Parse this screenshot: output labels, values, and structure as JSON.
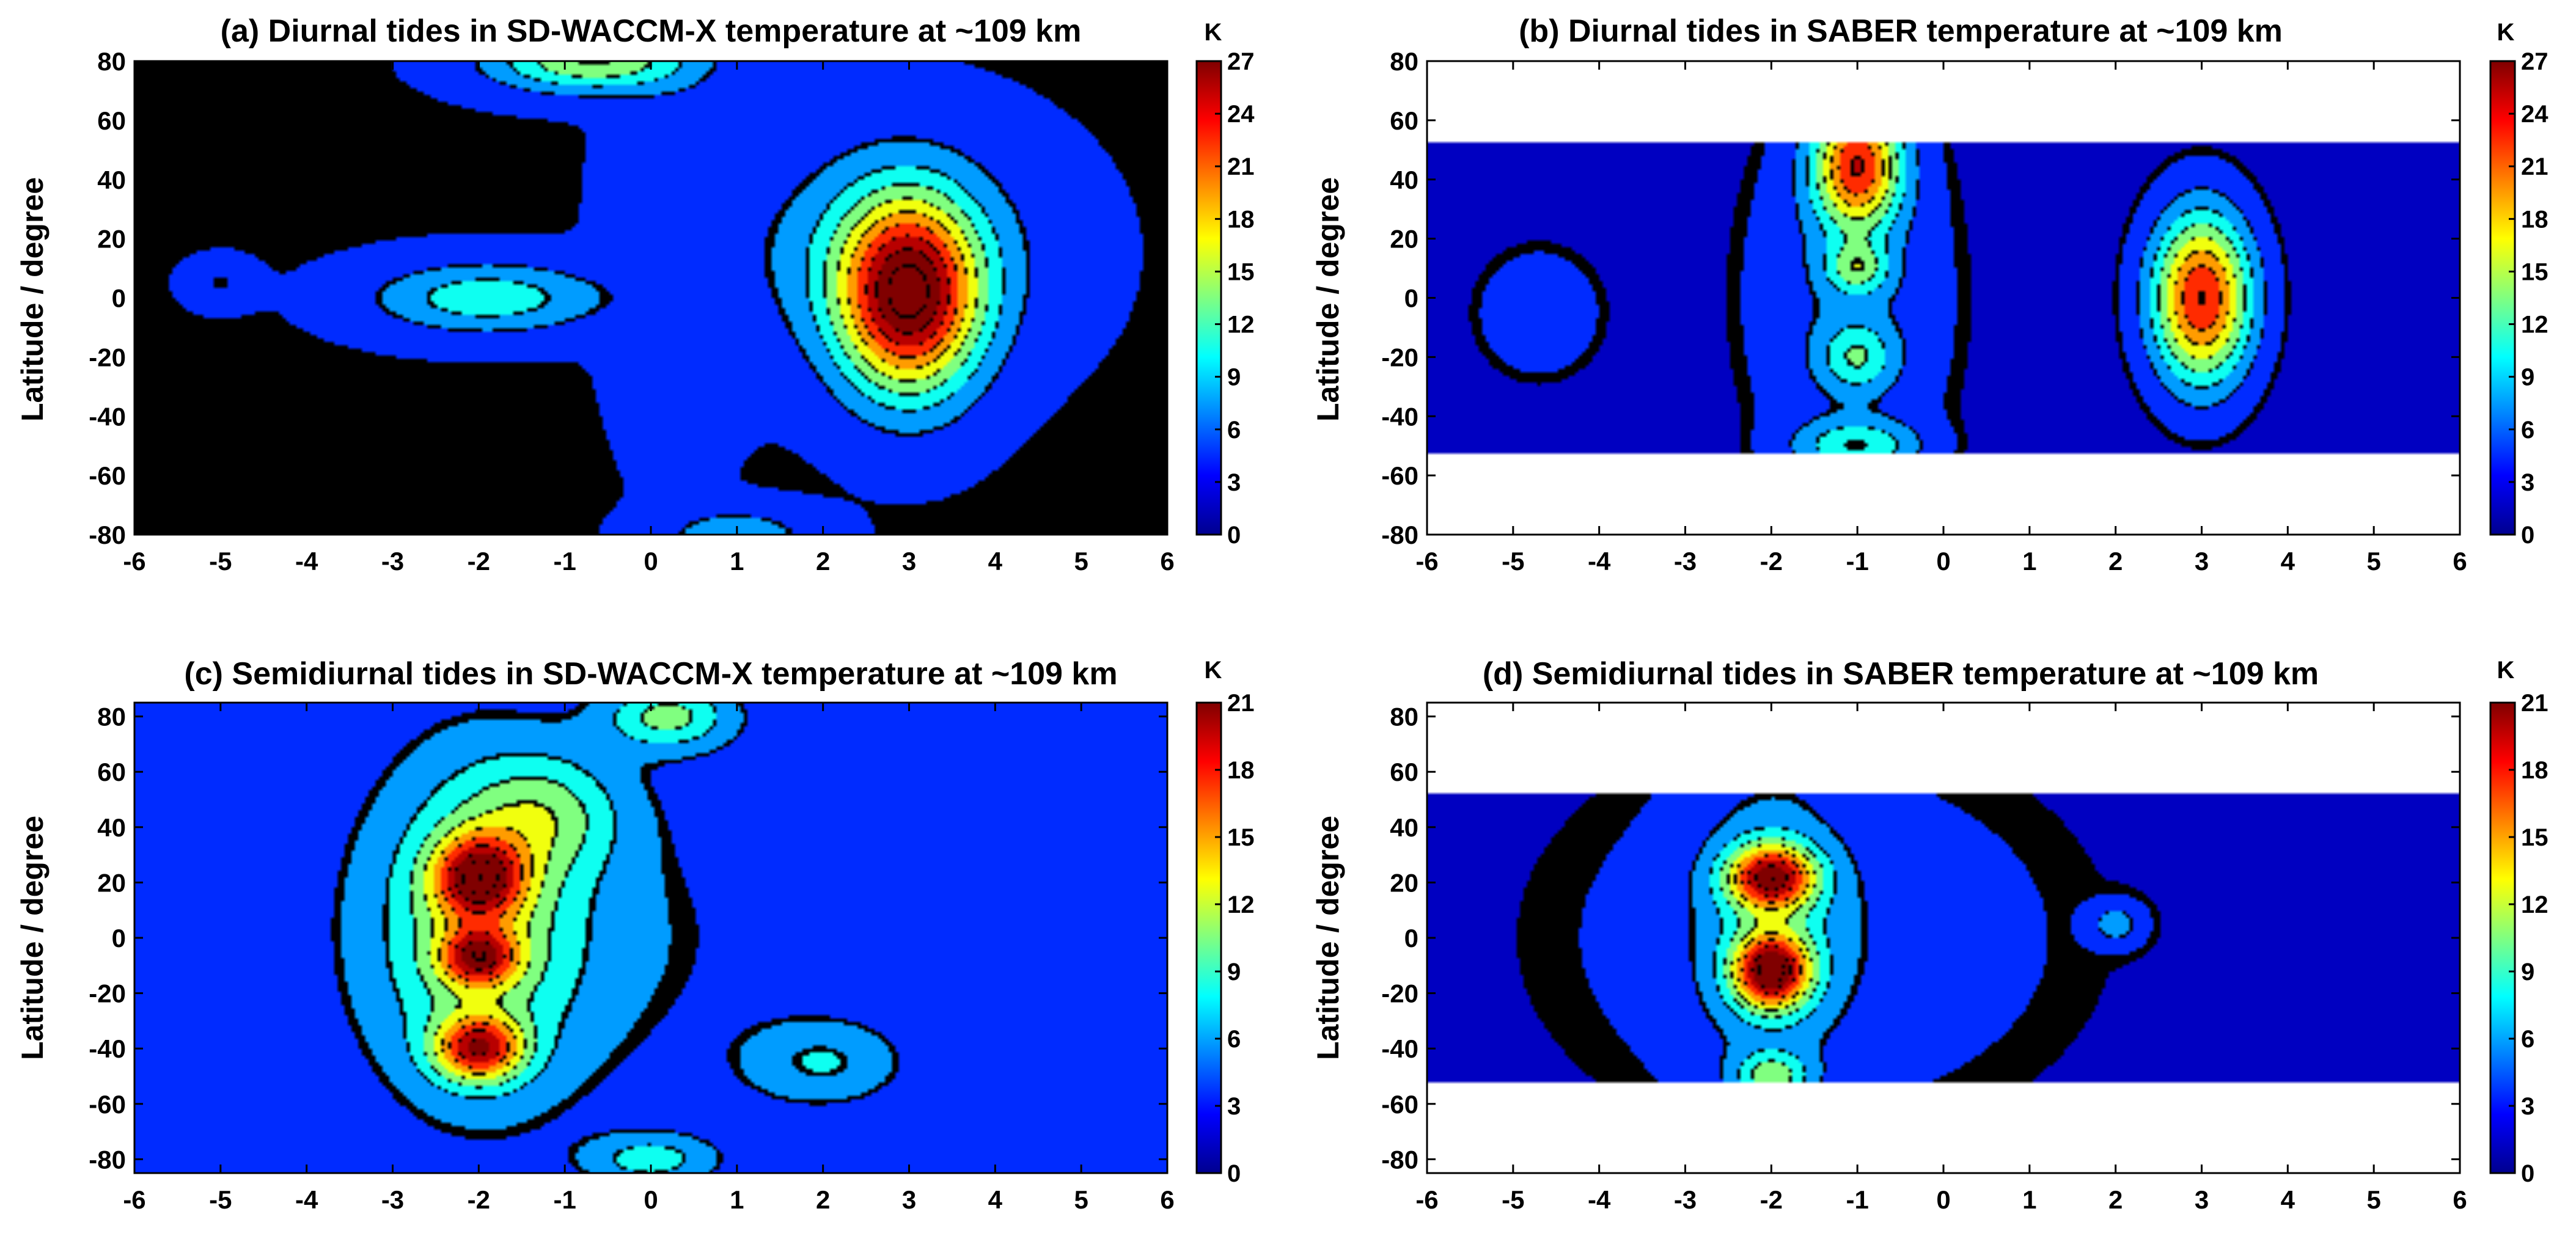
{
  "colors": {
    "cmap": [
      "#00008f",
      "#0000ff",
      "#0080ff",
      "#00ffff",
      "#80ff80",
      "#ffff00",
      "#ff8000",
      "#ff0000",
      "#800000"
    ],
    "background": "#ffffff"
  },
  "chart_data": [
    {
      "type": "heatmap",
      "panel": "a",
      "title": "(a) Diurnal tides in SD-WACCM-X temperature at ~109 km",
      "xlabel": "",
      "ylabel": "Latitude / degree",
      "colorbar_label": "K",
      "xlim": [
        -6,
        6
      ],
      "ylim": [
        -80,
        80
      ],
      "x_ticks": [
        "-6",
        "-5",
        "-4",
        "-3",
        "-2",
        "-1",
        "0",
        "1",
        "2",
        "3",
        "4",
        "5",
        "6"
      ],
      "y_ticks": [
        "80",
        "60",
        "40",
        "20",
        "0",
        "-20",
        "-40",
        "-60",
        "-80"
      ],
      "cbar_range": [
        0,
        27
      ],
      "cbar_ticks": [
        "27",
        "24",
        "21",
        "18",
        "15",
        "12",
        "9",
        "6",
        "3",
        "0"
      ],
      "lat_coverage": [
        -80,
        80
      ],
      "background_value": 3,
      "blobs": [
        {
          "x": 3.0,
          "y": 0,
          "sx": 0.55,
          "sy": 22,
          "amp": 24
        },
        {
          "x": 2.8,
          "y": 15,
          "sx": 1.1,
          "sy": 25,
          "amp": 6
        },
        {
          "x": -1.9,
          "y": 0,
          "sx": 0.9,
          "sy": 8,
          "amp": 8
        },
        {
          "x": -0.7,
          "y": 80,
          "sx": 0.8,
          "sy": 7,
          "amp": 12
        },
        {
          "x": 0.3,
          "y": 20,
          "sx": 0.5,
          "sy": 45,
          "amp": 2
        },
        {
          "x": 1.0,
          "y": -80,
          "sx": 0.6,
          "sy": 6,
          "amp": 5
        },
        {
          "x": -5.0,
          "y": 5,
          "sx": 0.25,
          "sy": 5,
          "amp": 3
        }
      ]
    },
    {
      "type": "heatmap",
      "panel": "b",
      "title": "(b) Diurnal tides in SABER temperature at ~109 km",
      "xlabel": "",
      "ylabel": "Latitude / degree",
      "colorbar_label": "K",
      "xlim": [
        -6,
        6
      ],
      "ylim": [
        -80,
        80
      ],
      "x_ticks": [
        "-6",
        "-5",
        "-4",
        "-3",
        "-2",
        "-1",
        "0",
        "1",
        "2",
        "3",
        "4",
        "5",
        "6"
      ],
      "y_ticks": [
        "80",
        "60",
        "40",
        "20",
        "0",
        "-20",
        "-40",
        "-60",
        "-80"
      ],
      "cbar_range": [
        0,
        27
      ],
      "cbar_ticks": [
        "27",
        "24",
        "21",
        "18",
        "15",
        "12",
        "9",
        "6",
        "3",
        "0"
      ],
      "lat_coverage": [
        -52,
        52
      ],
      "background_value": 2,
      "blobs": [
        {
          "x": 3.0,
          "y": 0,
          "sx": 0.4,
          "sy": 20,
          "amp": 22
        },
        {
          "x": -1.0,
          "y": 45,
          "sx": 0.35,
          "sy": 15,
          "amp": 20
        },
        {
          "x": -1.0,
          "y": 10,
          "sx": 0.25,
          "sy": 6,
          "amp": 8
        },
        {
          "x": -1.0,
          "y": -20,
          "sx": 0.3,
          "sy": 8,
          "amp": 7
        },
        {
          "x": -1.0,
          "y": -50,
          "sx": 0.5,
          "sy": 6,
          "amp": 8
        },
        {
          "x": -1.1,
          "y": 0,
          "sx": 0.8,
          "sy": 45,
          "amp": 4
        },
        {
          "x": -4.7,
          "y": -5,
          "sx": 0.5,
          "sy": 15,
          "amp": 3
        }
      ]
    },
    {
      "type": "heatmap",
      "panel": "c",
      "title": "(c) Semidiurnal tides in SD-WACCM-X temperature at ~109 km",
      "xlabel": "",
      "ylabel": "Latitude / degree",
      "colorbar_label": "K",
      "xlim": [
        -6,
        6
      ],
      "ylim": [
        -85,
        85
      ],
      "x_ticks": [
        "-6",
        "-5",
        "-4",
        "-3",
        "-2",
        "-1",
        "0",
        "1",
        "2",
        "3",
        "4",
        "5",
        "6"
      ],
      "y_ticks": [
        "80",
        "60",
        "40",
        "20",
        "0",
        "-20",
        "-40",
        "-60",
        "-80"
      ],
      "cbar_range": [
        0,
        21
      ],
      "cbar_ticks": [
        "21",
        "18",
        "15",
        "12",
        "9",
        "6",
        "3",
        "0"
      ],
      "lat_coverage": [
        -85,
        85
      ],
      "background_value": 3,
      "blobs": [
        {
          "x": -2.0,
          "y": 22,
          "sx": 0.35,
          "sy": 10,
          "amp": 14
        },
        {
          "x": -2.0,
          "y": -7,
          "sx": 0.3,
          "sy": 7,
          "amp": 12
        },
        {
          "x": -2.0,
          "y": -40,
          "sx": 0.35,
          "sy": 8,
          "amp": 14
        },
        {
          "x": -2.0,
          "y": 5,
          "sx": 0.8,
          "sy": 40,
          "amp": 7
        },
        {
          "x": -1.2,
          "y": 45,
          "sx": 0.6,
          "sy": 15,
          "amp": 5
        },
        {
          "x": 0.2,
          "y": 80,
          "sx": 0.5,
          "sy": 8,
          "amp": 7
        },
        {
          "x": 2.0,
          "y": -45,
          "sx": 0.6,
          "sy": 10,
          "amp": 4
        },
        {
          "x": 0.0,
          "y": -80,
          "sx": 0.5,
          "sy": 6,
          "amp": 5
        },
        {
          "x": -1.0,
          "y": 0,
          "sx": 2.0,
          "sy": 45,
          "amp": 2
        }
      ]
    },
    {
      "type": "heatmap",
      "panel": "d",
      "title": "(d) Semidiurnal tides in SABER temperature at ~109 km",
      "xlabel": "",
      "ylabel": "Latitude / degree",
      "colorbar_label": "K",
      "xlim": [
        -6,
        6
      ],
      "ylim": [
        -85,
        85
      ],
      "x_ticks": [
        "-6",
        "-5",
        "-4",
        "-3",
        "-2",
        "-1",
        "0",
        "1",
        "2",
        "3",
        "4",
        "5",
        "6"
      ],
      "y_ticks": [
        "80",
        "60",
        "40",
        "20",
        "0",
        "-20",
        "-40",
        "-60",
        "-80"
      ],
      "cbar_range": [
        0,
        21
      ],
      "cbar_ticks": [
        "21",
        "18",
        "15",
        "12",
        "9",
        "6",
        "3",
        "0"
      ],
      "lat_coverage": [
        -52,
        52
      ],
      "background_value": 2,
      "blobs": [
        {
          "x": -2.0,
          "y": 22,
          "sx": 0.35,
          "sy": 8,
          "amp": 16
        },
        {
          "x": -2.0,
          "y": -12,
          "sx": 0.3,
          "sy": 9,
          "amp": 18
        },
        {
          "x": -2.0,
          "y": -50,
          "sx": 0.3,
          "sy": 6,
          "amp": 7
        },
        {
          "x": -2.0,
          "y": 5,
          "sx": 0.6,
          "sy": 40,
          "amp": 4
        },
        {
          "x": 2.0,
          "y": 5,
          "sx": 0.2,
          "sy": 5,
          "amp": 4
        },
        {
          "x": -1.5,
          "y": 0,
          "sx": 1.6,
          "sy": 35,
          "amp": 2
        }
      ]
    }
  ]
}
